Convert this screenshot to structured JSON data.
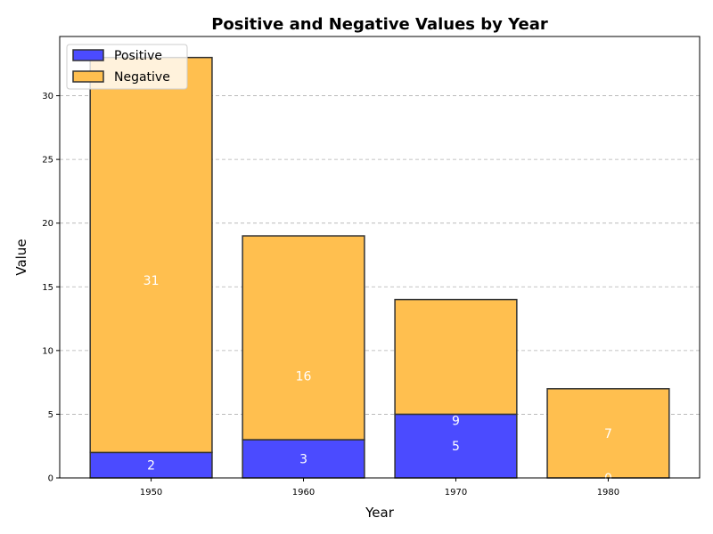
{
  "chart_data": {
    "type": "bar",
    "stacked": true,
    "title": "Positive and Negative Values by Year",
    "xlabel": "Year",
    "ylabel": "Value",
    "categories": [
      "1950",
      "1960",
      "1970",
      "1980"
    ],
    "series": [
      {
        "name": "Positive",
        "values": [
          2,
          3,
          5,
          0
        ],
        "color": "#4b4bff"
      },
      {
        "name": "Negative",
        "values": [
          31,
          16,
          9,
          7
        ],
        "color": "#ffbf4f"
      }
    ],
    "ylim": [
      0,
      34.65
    ],
    "yticks": [
      0,
      5,
      10,
      15,
      20,
      25,
      30
    ],
    "grid": "y-dashed",
    "legend": "top-left",
    "bar_edge_color": "#333333"
  }
}
